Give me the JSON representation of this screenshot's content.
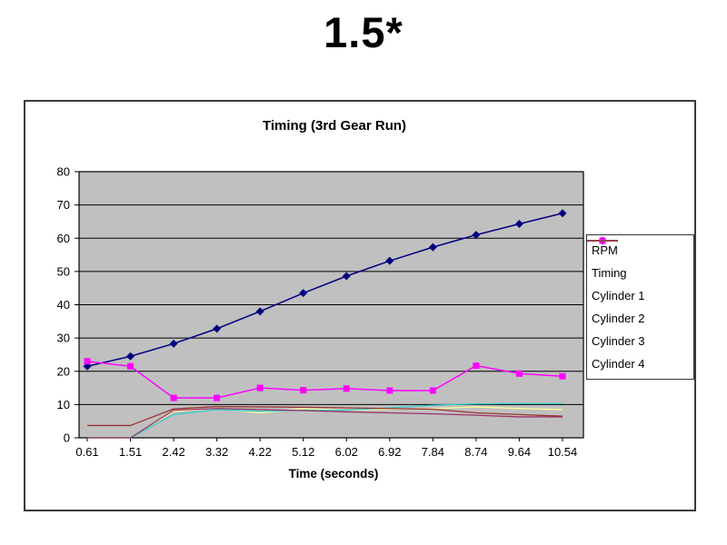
{
  "page": {
    "title": "1.5*"
  },
  "chart_data": {
    "type": "line",
    "title": "Timing (3rd Gear Run)",
    "xlabel": "Time (seconds)",
    "ylabel": "",
    "ylim": [
      0,
      80
    ],
    "y_ticks": [
      0,
      10,
      20,
      30,
      40,
      50,
      60,
      70,
      80
    ],
    "categories": [
      "0.61",
      "1.51",
      "2.42",
      "3.32",
      "4.22",
      "5.12",
      "6.02",
      "6.92",
      "7.84",
      "8.74",
      "9.64",
      "10.54"
    ],
    "grid": true,
    "legend_position": "right",
    "plot_bg": "#C0C0C0",
    "axis_color": "#000000",
    "series": [
      {
        "name": "RPM",
        "color": "#000080",
        "marker": "diamond",
        "values": [
          21.5,
          24.5,
          28.3,
          32.8,
          38,
          43.5,
          48.6,
          53.2,
          57.3,
          61,
          64.3,
          67.5
        ]
      },
      {
        "name": "Timing",
        "color": "#FF00FF",
        "marker": "square",
        "values": [
          23,
          21.5,
          12,
          12,
          15,
          14.3,
          14.8,
          14.2,
          14.2,
          21.7,
          19.3,
          18.5
        ]
      },
      {
        "name": "Cylinder 1",
        "color": "#FFFF99",
        "marker": "none",
        "values": [
          0,
          0,
          8,
          8.8,
          7.5,
          8.8,
          8.3,
          8.6,
          8.8,
          9.3,
          8.8,
          8.5
        ]
      },
      {
        "name": "Cylinder 2",
        "color": "#33CCCC",
        "marker": "none",
        "values": [
          0,
          0,
          7,
          8.5,
          8,
          8.3,
          8.3,
          9,
          9.8,
          10.2,
          10.3,
          10.3
        ]
      },
      {
        "name": "Cylinder 3",
        "color": "#993366",
        "marker": "none",
        "values": [
          0,
          0,
          8.3,
          8.8,
          8.5,
          8.2,
          7.8,
          7.5,
          7.2,
          6.8,
          6.3,
          6.3
        ]
      },
      {
        "name": "Cylinder 4",
        "color": "#993333",
        "marker": "none",
        "values": [
          3.7,
          3.7,
          8.7,
          9.4,
          9.3,
          9.2,
          9,
          8.8,
          8.6,
          7.5,
          7,
          6.5
        ]
      }
    ]
  }
}
